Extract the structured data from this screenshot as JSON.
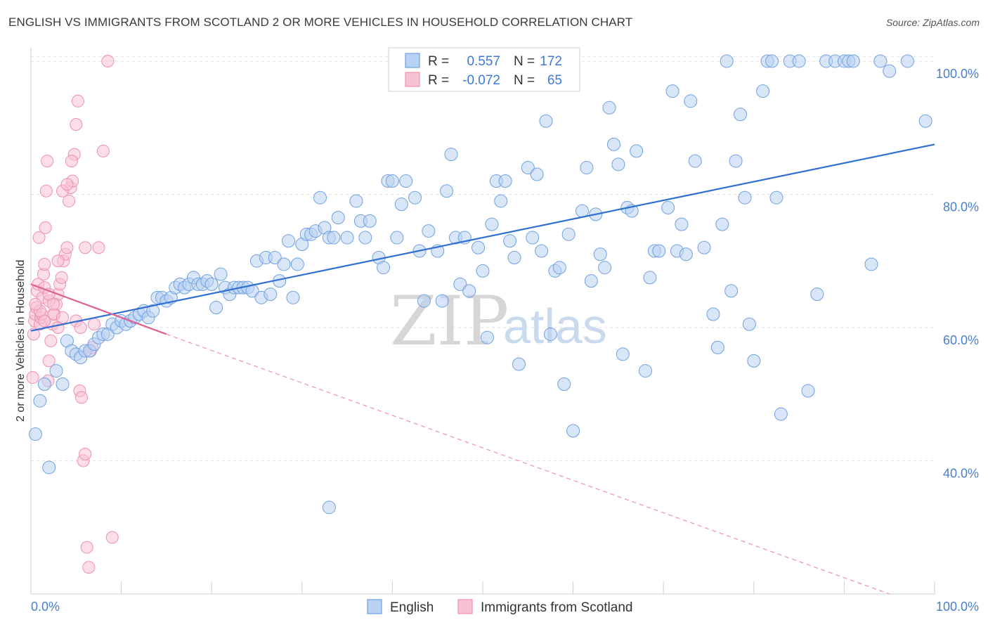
{
  "title": "ENGLISH VS IMMIGRANTS FROM SCOTLAND 2 OR MORE VEHICLES IN HOUSEHOLD CORRELATION CHART",
  "source": "Source: ZipAtlas.com",
  "watermark": {
    "zip": "ZIP",
    "atlas": "atlas"
  },
  "colors": {
    "english": "#6fa0e0",
    "english_line": "#2f6fd1",
    "scotland": "#ef8fb0",
    "scotland_line": "#e06090"
  },
  "stats": [
    {
      "r_label": "R =",
      "r_value": "0.557",
      "n_label": "N =",
      "n_value": "172"
    },
    {
      "r_label": "R =",
      "r_value": "-0.072",
      "n_label": "N =",
      "n_value": "65"
    }
  ],
  "chart_data": {
    "type": "scatter",
    "title": "ENGLISH VS IMMIGRANTS FROM SCOTLAND 2 OR MORE VEHICLES IN HOUSEHOLD CORRELATION CHART",
    "xlabel": "",
    "ylabel": "2 or more Vehicles in Household",
    "xlim": [
      0,
      100
    ],
    "ylim": [
      20,
      102
    ],
    "x_tick_labels": [
      "0.0%",
      "100.0%"
    ],
    "y_tick_labels": [
      {
        "value": 100,
        "label": "100.0%"
      },
      {
        "value": 80,
        "label": "80.0%"
      },
      {
        "value": 60,
        "label": "60.0%"
      },
      {
        "value": 40,
        "label": "40.0%"
      }
    ],
    "grid": true,
    "legend_position": "bottom-center",
    "series": [
      {
        "name": "English",
        "trend": {
          "x": [
            0,
            100
          ],
          "y": [
            59.5,
            87.5
          ]
        },
        "points": [
          [
            0.5,
            44
          ],
          [
            1,
            49
          ],
          [
            1.5,
            51.5
          ],
          [
            2,
            39
          ],
          [
            2.8,
            53.5
          ],
          [
            3.5,
            51.5
          ],
          [
            4,
            58
          ],
          [
            4.5,
            56.5
          ],
          [
            5,
            56
          ],
          [
            5.5,
            55.5
          ],
          [
            6,
            56.5
          ],
          [
            6.5,
            56.5
          ],
          [
            7,
            57.5
          ],
          [
            7.5,
            58.5
          ],
          [
            8,
            59
          ],
          [
            8.5,
            59
          ],
          [
            9,
            60.5
          ],
          [
            9.5,
            60
          ],
          [
            10,
            61
          ],
          [
            10.5,
            60.5
          ],
          [
            11,
            61
          ],
          [
            11.5,
            61.5
          ],
          [
            12,
            62
          ],
          [
            12.5,
            62.5
          ],
          [
            13,
            61.5
          ],
          [
            13.5,
            62.5
          ],
          [
            14,
            64.5
          ],
          [
            14.5,
            64.5
          ],
          [
            15,
            64
          ],
          [
            15.5,
            64.5
          ],
          [
            16,
            66
          ],
          [
            16.5,
            66.5
          ],
          [
            17,
            66
          ],
          [
            17.5,
            66.5
          ],
          [
            18,
            67.5
          ],
          [
            18.5,
            66.5
          ],
          [
            19,
            66.5
          ],
          [
            19.5,
            67
          ],
          [
            20,
            66.5
          ],
          [
            20.5,
            63
          ],
          [
            21,
            68
          ],
          [
            21.5,
            66
          ],
          [
            22,
            65
          ],
          [
            22.5,
            66
          ],
          [
            23,
            66
          ],
          [
            23.5,
            66
          ],
          [
            24,
            66
          ],
          [
            24.5,
            65.5
          ],
          [
            25,
            70
          ],
          [
            25.5,
            64.5
          ],
          [
            26,
            70.5
          ],
          [
            26.5,
            65
          ],
          [
            27,
            70.5
          ],
          [
            27.5,
            67
          ],
          [
            28,
            69.5
          ],
          [
            28.5,
            73
          ],
          [
            29,
            64.5
          ],
          [
            29.5,
            69.5
          ],
          [
            30,
            72.5
          ],
          [
            30.5,
            74
          ],
          [
            31,
            74
          ],
          [
            31.5,
            74.5
          ],
          [
            32,
            79.5
          ],
          [
            32.5,
            75
          ],
          [
            33,
            73.5
          ],
          [
            33.5,
            73.5
          ],
          [
            34,
            76.5
          ],
          [
            35,
            73.5
          ],
          [
            36,
            79
          ],
          [
            36.5,
            76
          ],
          [
            37,
            73.5
          ],
          [
            37.5,
            76
          ],
          [
            38.5,
            70.5
          ],
          [
            39,
            69
          ],
          [
            39.5,
            82
          ],
          [
            40,
            82
          ],
          [
            40.5,
            73.5
          ],
          [
            41,
            78.5
          ],
          [
            41.5,
            82
          ],
          [
            42.5,
            79.5
          ],
          [
            43,
            71.5
          ],
          [
            43.5,
            64
          ],
          [
            44,
            74.5
          ],
          [
            45,
            71.5
          ],
          [
            45.5,
            64
          ],
          [
            46,
            80.5
          ],
          [
            46.5,
            86
          ],
          [
            47,
            73.5
          ],
          [
            47.5,
            66.5
          ],
          [
            48,
            73.5
          ],
          [
            48.5,
            65.5
          ],
          [
            49.5,
            72
          ],
          [
            50,
            68.5
          ],
          [
            50.5,
            58.5
          ],
          [
            51,
            75.5
          ],
          [
            51.5,
            82
          ],
          [
            52,
            79
          ],
          [
            52.5,
            82
          ],
          [
            53,
            73
          ],
          [
            53.5,
            70.5
          ],
          [
            54,
            54.5
          ],
          [
            55,
            84
          ],
          [
            55.5,
            73.5
          ],
          [
            56,
            83
          ],
          [
            56.5,
            71.5
          ],
          [
            57,
            91
          ],
          [
            57.5,
            59
          ],
          [
            58,
            68.5
          ],
          [
            58.5,
            69
          ],
          [
            59,
            51.5
          ],
          [
            59.5,
            74
          ],
          [
            60,
            44.5
          ],
          [
            61,
            77.5
          ],
          [
            61.5,
            84
          ],
          [
            62,
            67
          ],
          [
            62.5,
            77
          ],
          [
            63,
            71
          ],
          [
            63.5,
            69
          ],
          [
            64,
            93
          ],
          [
            64.5,
            87.5
          ],
          [
            65,
            84.5
          ],
          [
            65.5,
            56
          ],
          [
            66,
            78
          ],
          [
            66.5,
            77.5
          ],
          [
            67,
            86.5
          ],
          [
            68,
            53.5
          ],
          [
            68.5,
            67.5
          ],
          [
            69,
            71.5
          ],
          [
            69.5,
            71.5
          ],
          [
            70.5,
            78
          ],
          [
            71,
            95.5
          ],
          [
            71.5,
            71.5
          ],
          [
            72,
            75.5
          ],
          [
            72.5,
            71
          ],
          [
            73,
            94
          ],
          [
            73.5,
            85
          ],
          [
            74.5,
            72
          ],
          [
            75.5,
            62
          ],
          [
            76,
            57
          ],
          [
            76.5,
            75.5
          ],
          [
            77,
            100
          ],
          [
            77.5,
            65.5
          ],
          [
            78,
            85
          ],
          [
            78.5,
            92
          ],
          [
            79,
            79.5
          ],
          [
            79.5,
            60.5
          ],
          [
            80,
            55
          ],
          [
            81,
            95.5
          ],
          [
            81.5,
            100
          ],
          [
            82,
            100
          ],
          [
            82.5,
            79.5
          ],
          [
            83,
            47
          ],
          [
            84,
            100
          ],
          [
            85,
            100
          ],
          [
            86,
            50.5
          ],
          [
            87,
            65
          ],
          [
            88,
            100
          ],
          [
            89,
            100
          ],
          [
            90,
            100
          ],
          [
            90.5,
            100
          ],
          [
            91,
            100
          ],
          [
            93,
            69.5
          ],
          [
            94,
            100
          ],
          [
            95,
            98.5
          ],
          [
            97,
            100
          ],
          [
            99,
            91
          ],
          [
            33,
            33
          ]
        ]
      },
      {
        "name": "Immigrants from Scotland",
        "trend": {
          "x": [
            0,
            15
          ],
          "y": [
            66.5,
            59
          ]
        },
        "dashed_extension": {
          "x": [
            15,
            95
          ],
          "y": [
            59,
            20
          ]
        },
        "points": [
          [
            0.2,
            52.5
          ],
          [
            0.3,
            59
          ],
          [
            0.4,
            61
          ],
          [
            0.5,
            62
          ],
          [
            0.6,
            63
          ],
          [
            0.7,
            65.5
          ],
          [
            0.8,
            66.5
          ],
          [
            0.9,
            73.5
          ],
          [
            1,
            60.5
          ],
          [
            1.1,
            61.5
          ],
          [
            1.2,
            62
          ],
          [
            1.3,
            64.5
          ],
          [
            1.4,
            68
          ],
          [
            1.5,
            69.5
          ],
          [
            1.6,
            75
          ],
          [
            1.7,
            80.5
          ],
          [
            1.8,
            85
          ],
          [
            1.9,
            52
          ],
          [
            2,
            55
          ],
          [
            2.2,
            58
          ],
          [
            2.4,
            60.5
          ],
          [
            2.6,
            62
          ],
          [
            2.8,
            63.5
          ],
          [
            3,
            65
          ],
          [
            3.2,
            66.5
          ],
          [
            3.4,
            67.5
          ],
          [
            3.6,
            70
          ],
          [
            3.8,
            71
          ],
          [
            4,
            72
          ],
          [
            4.2,
            79
          ],
          [
            4.4,
            81
          ],
          [
            4.6,
            82
          ],
          [
            4.8,
            86
          ],
          [
            5,
            90.5
          ],
          [
            5.2,
            94
          ],
          [
            5.4,
            50.5
          ],
          [
            5.6,
            49.5
          ],
          [
            5.8,
            40
          ],
          [
            6,
            41
          ],
          [
            6.2,
            27
          ],
          [
            6.4,
            24
          ],
          [
            6.6,
            56.5
          ],
          [
            6.8,
            57
          ],
          [
            7,
            60.5
          ],
          [
            7.5,
            72
          ],
          [
            8,
            86.5
          ],
          [
            8.5,
            100
          ],
          [
            9,
            28.5
          ],
          [
            1.5,
            61
          ],
          [
            2,
            64
          ],
          [
            2.5,
            62
          ],
          [
            3,
            60
          ],
          [
            3.5,
            61.5
          ],
          [
            1,
            62.5
          ],
          [
            0.5,
            63.5
          ],
          [
            1.5,
            66
          ],
          [
            2,
            65
          ],
          [
            2.5,
            63.5
          ],
          [
            3,
            70
          ],
          [
            3.5,
            80.5
          ],
          [
            4,
            81.5
          ],
          [
            4.5,
            85
          ],
          [
            5,
            61
          ],
          [
            5.5,
            60
          ],
          [
            6,
            72
          ]
        ]
      }
    ]
  }
}
